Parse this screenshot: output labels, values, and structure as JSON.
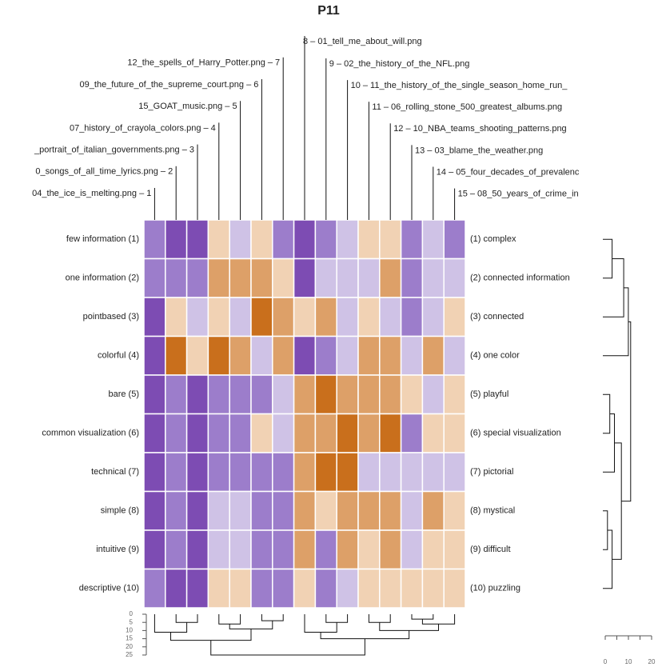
{
  "chart_data": {
    "type": "heatmap",
    "title": "P11",
    "columns": [
      "04_the_ice_is_melting.png – 1",
      "0_songs_of_all_time_lyrics.png – 2",
      "_portrait_of_italian_governments.png – 3",
      "07_history_of_crayola_colors.png – 4",
      "15_GOAT_music.png – 5",
      "09_the_future_of_the_supreme_court.png – 6",
      "12_the_spells_of_Harry_Potter.png – 7",
      "8 – 01_tell_me_about_will.png",
      "9 – 02_the_history_of_the_NFL.png",
      "10 – 11_the_history_of_the_single_season_home_run_",
      "11 – 06_rolling_stone_500_greatest_albums.png",
      "12 – 10_NBA_teams_shooting_patterns.png",
      "13 – 03_blame_the_weather.png",
      "14 – 05_four_decades_of_prevalenc",
      "15 – 08_50_years_of_crime_in"
    ],
    "rows_left": [
      "few information (1)",
      "one information (2)",
      "pointbased (3)",
      "colorful (4)",
      "bare (5)",
      "common visualization (6)",
      "technical (7)",
      "simple (8)",
      "intuitive (9)",
      "descriptive (10)"
    ],
    "rows_right": [
      "(1) complex",
      "(2) connected information",
      "(3) connected",
      "(4) one color",
      "(5) playful",
      "(6) special visualization",
      "(7) pictorial",
      "(8) mystical",
      "(9) difficult",
      "(10) puzzling"
    ],
    "values": [
      [
        -2,
        -3,
        -3,
        1,
        -1,
        1,
        -2,
        -3,
        -2,
        -1,
        1,
        1,
        -2,
        -1,
        -2
      ],
      [
        -2,
        -2,
        -2,
        2,
        2,
        2,
        1,
        -3,
        -1,
        -1,
        -1,
        2,
        -2,
        -1,
        -1
      ],
      [
        -3,
        1,
        -1,
        1,
        -1,
        3,
        2,
        1,
        2,
        -1,
        1,
        -1,
        -2,
        -1,
        1
      ],
      [
        -3,
        3,
        1,
        3,
        2,
        -1,
        2,
        -3,
        -2,
        -1,
        2,
        2,
        -1,
        2,
        -1
      ],
      [
        -3,
        -2,
        -3,
        -2,
        -2,
        -2,
        -1,
        2,
        3,
        2,
        2,
        2,
        1,
        -1,
        1
      ],
      [
        -3,
        -2,
        -3,
        -2,
        -2,
        1,
        -1,
        2,
        2,
        3,
        2,
        3,
        -2,
        1,
        1
      ],
      [
        -3,
        -2,
        -3,
        -2,
        -2,
        -2,
        -2,
        2,
        3,
        3,
        -1,
        -1,
        -1,
        -1,
        -1
      ],
      [
        -3,
        -2,
        -3,
        -1,
        -1,
        -2,
        -2,
        2,
        1,
        2,
        2,
        2,
        -1,
        2,
        1
      ],
      [
        -3,
        -2,
        -3,
        -1,
        -1,
        -2,
        -2,
        2,
        -2,
        2,
        1,
        2,
        -1,
        1,
        1
      ],
      [
        -2,
        -3,
        -3,
        1,
        1,
        -2,
        -2,
        1,
        -2,
        -1,
        1,
        1,
        1,
        1,
        1
      ]
    ],
    "color_scale": {
      "values": [
        -3,
        -2,
        -1,
        1,
        2,
        3
      ],
      "colors": [
        "#7d4cb3",
        "#9c7dcb",
        "#cfc2e6",
        "#f1d2b4",
        "#dda068",
        "#c96f1c"
      ]
    },
    "column_dendrogram": {
      "merges": [
        [
          -2,
          -3,
          5
        ],
        [
          -1,
          1,
          11
        ],
        [
          -6,
          -7,
          4
        ],
        [
          -4,
          -5,
          6
        ],
        [
          4,
          3,
          9
        ],
        [
          2,
          5,
          16
        ],
        [
          -9,
          -10,
          5
        ],
        [
          -8,
          7,
          11
        ],
        [
          -13,
          -14,
          3
        ],
        [
          -11,
          -12,
          5
        ],
        [
          9,
          -15,
          6
        ],
        [
          10,
          11,
          10
        ],
        [
          8,
          12,
          15
        ],
        [
          6,
          13,
          25
        ]
      ],
      "ticks": [
        0,
        5,
        10,
        15,
        20,
        25
      ],
      "lim": [
        0,
        25
      ]
    },
    "row_dendrogram": {
      "merges": [
        [
          -1,
          -2,
          4
        ],
        [
          1,
          -3,
          9
        ],
        [
          2,
          -4,
          11
        ],
        [
          -5,
          -6,
          3
        ],
        [
          4,
          -7,
          5
        ],
        [
          -8,
          -9,
          2
        ],
        [
          6,
          -10,
          4
        ],
        [
          5,
          7,
          8
        ],
        [
          3,
          8,
          12
        ]
      ],
      "ticks": [
        0,
        10,
        20
      ],
      "minor_ticks": [
        5,
        15
      ],
      "lim": [
        0,
        20
      ]
    }
  }
}
